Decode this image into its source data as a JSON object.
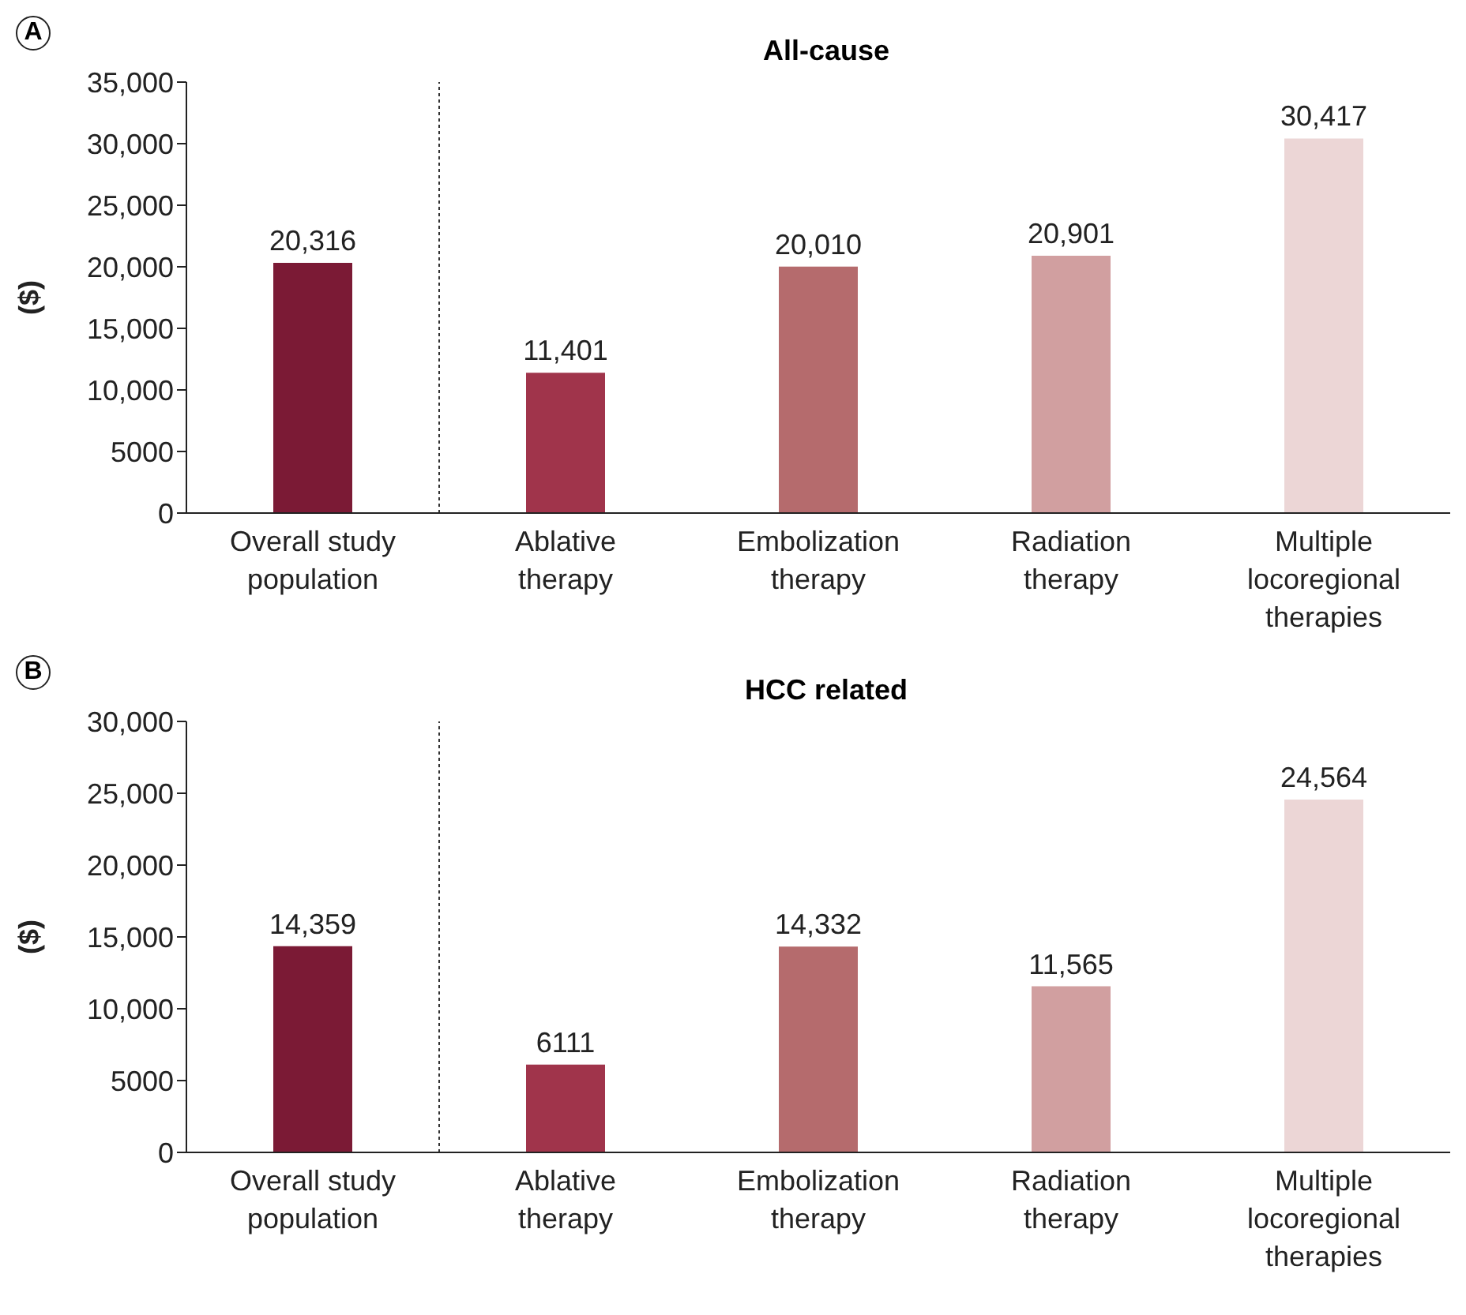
{
  "chart_data": [
    {
      "type": "bar",
      "title": "All-cause",
      "ylabel": "($)",
      "annotations": [
        "A"
      ],
      "categories": [
        "Overall study population",
        "Ablative therapy",
        "Embolization therapy",
        "Radiation therapy",
        "Multiple locoregional therapies"
      ],
      "values": [
        20316,
        11401,
        20010,
        20901,
        30417
      ],
      "value_labels": [
        "20,316",
        "11,401",
        "20,010",
        "20,901",
        "30,417"
      ],
      "colors": [
        "#7b1a35",
        "#a0344b",
        "#b56b6d",
        "#d19fa0",
        "#ecd6d6"
      ],
      "ylim": [
        0,
        35000
      ],
      "yticks": [
        0,
        {
          "value": 5000,
          "label": "5000"
        },
        {
          "value": 10000,
          "label": "10,000"
        },
        {
          "value": 15000,
          "label": "15,000"
        },
        {
          "value": 20000,
          "label": "20,000"
        },
        {
          "value": 25000,
          "label": "25,000"
        },
        {
          "value": 30000,
          "label": "30,000"
        },
        {
          "value": 35000,
          "label": "35,000"
        }
      ]
    },
    {
      "type": "bar",
      "title": "HCC related",
      "ylabel": "($)",
      "annotations": [
        "B"
      ],
      "categories": [
        "Overall study population",
        "Ablative therapy",
        "Embolization therapy",
        "Radiation therapy",
        "Multiple locoregional therapies"
      ],
      "values": [
        14359,
        6111,
        14332,
        11565,
        24564
      ],
      "value_labels": [
        "14,359",
        "6111",
        "14,332",
        "11,565",
        "24,564"
      ],
      "colors": [
        "#7b1a35",
        "#a0344b",
        "#b56b6d",
        "#d19fa0",
        "#ecd6d6"
      ],
      "ylim": [
        0,
        30000
      ],
      "yticks": [
        0,
        {
          "value": 5000,
          "label": "5000"
        },
        {
          "value": 10000,
          "label": "10,000"
        },
        {
          "value": 15000,
          "label": "15,000"
        },
        {
          "value": 20000,
          "label": "20,000"
        },
        {
          "value": 25000,
          "label": "25,000"
        },
        {
          "value": 30000,
          "label": "30,000"
        }
      ]
    }
  ]
}
